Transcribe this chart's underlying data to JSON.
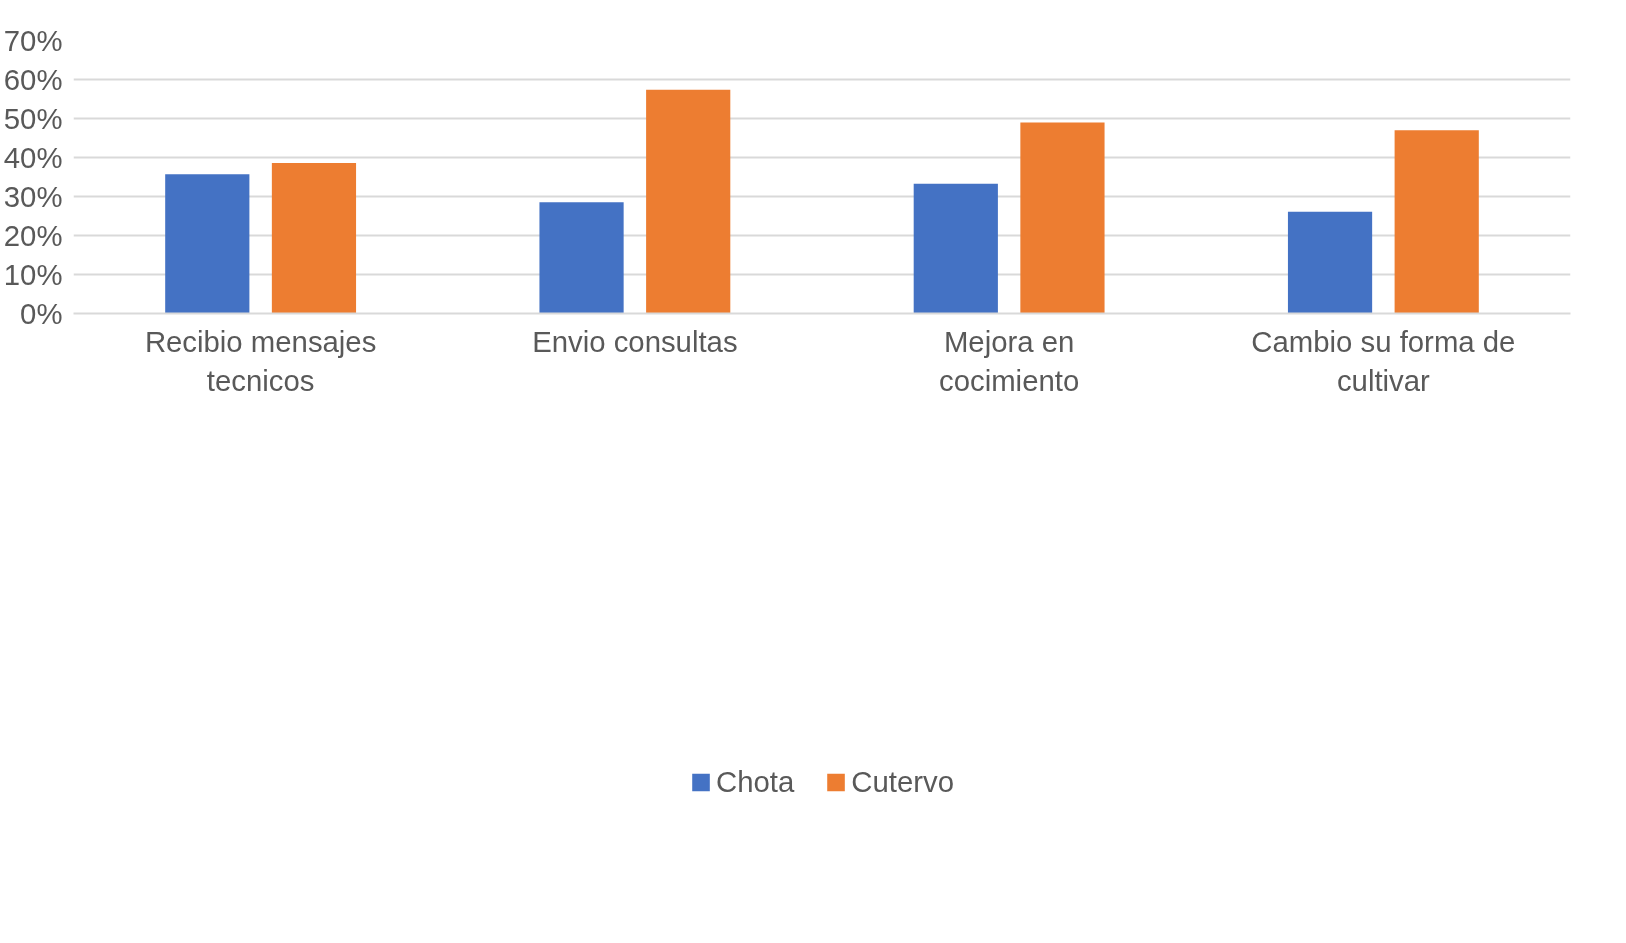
{
  "chart_data": {
    "type": "bar",
    "categories": [
      "Recibio mensajes tecnicos",
      "Envio consultas",
      "Mejora en cocimiento",
      "Cambio su forma de cultivar"
    ],
    "series": [
      {
        "name": "Chota",
        "color": "#4472c4",
        "values": [
          35.7,
          28.5,
          33.3,
          26.1
        ]
      },
      {
        "name": "Cutervo",
        "color": "#ed7d31",
        "values": [
          38.6,
          57.4,
          49.0,
          47.0
        ]
      }
    ],
    "ylim": [
      0,
      70
    ],
    "yticks": [
      {
        "value": 0,
        "label": "0%"
      },
      {
        "value": 10,
        "label": "10%"
      },
      {
        "value": 20,
        "label": "20%"
      },
      {
        "value": 30,
        "label": "30%"
      },
      {
        "value": 40,
        "label": "40%"
      },
      {
        "value": 50,
        "label": "50%"
      },
      {
        "value": 60,
        "label": "60%"
      },
      {
        "value": 70,
        "label": "70%"
      }
    ],
    "grid": "y",
    "legend": "bottom"
  }
}
